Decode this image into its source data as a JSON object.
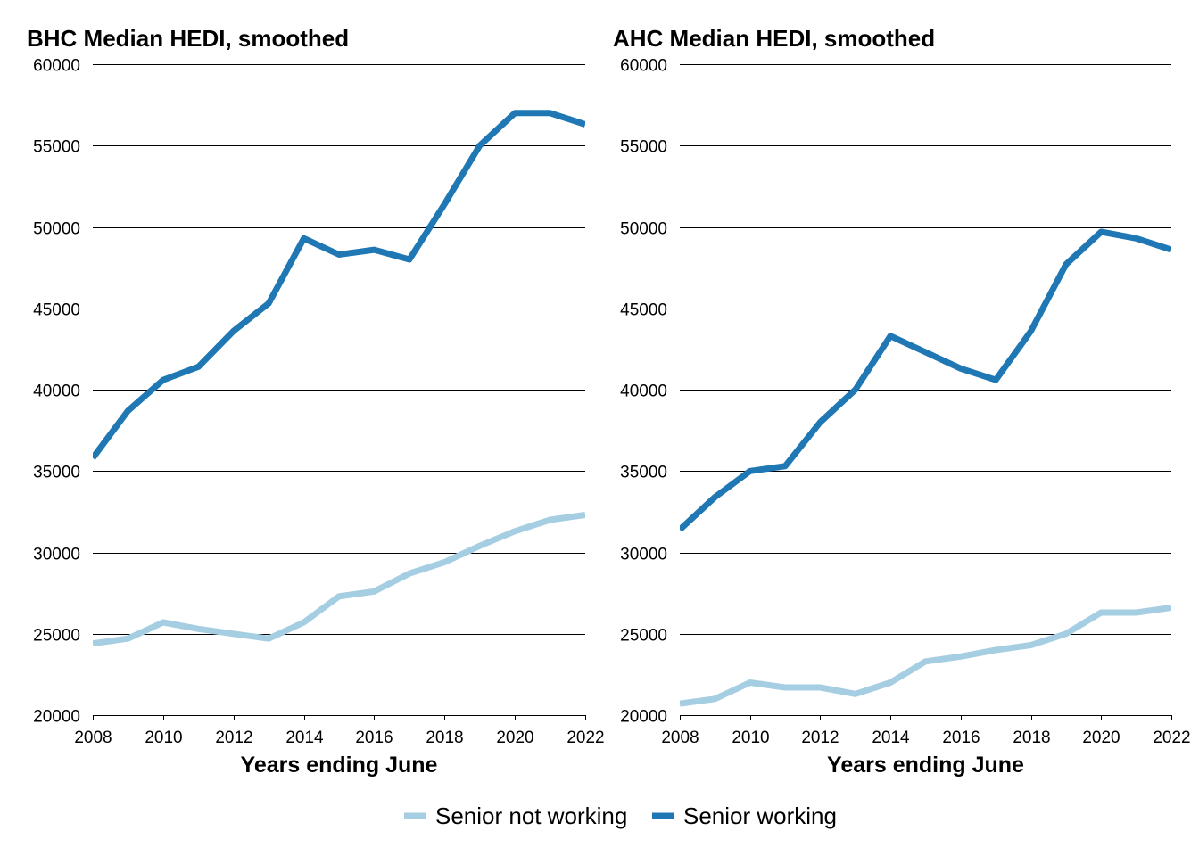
{
  "chart_data": [
    {
      "type": "line",
      "title": "BHC Median HEDI, smoothed",
      "xlabel": "Years ending June",
      "ylabel": "",
      "x": [
        2008,
        2009,
        2010,
        2011,
        2012,
        2013,
        2014,
        2015,
        2016,
        2017,
        2018,
        2019,
        2020,
        2021,
        2022
      ],
      "xlim": [
        2008,
        2022
      ],
      "ylim": [
        20000,
        60000
      ],
      "xticks": [
        2008,
        2010,
        2012,
        2014,
        2016,
        2018,
        2020,
        2022
      ],
      "yticks": [
        20000,
        25000,
        30000,
        35000,
        40000,
        45000,
        50000,
        55000,
        60000
      ],
      "grid": "horizontal",
      "series": [
        {
          "name": "Senior not working",
          "color": "#a6cee3",
          "values": [
            24400,
            24700,
            25700,
            25300,
            25000,
            24700,
            25700,
            27300,
            27600,
            28700,
            29400,
            30400,
            31300,
            32000,
            32300
          ]
        },
        {
          "name": "Senior working",
          "color": "#1f78b4",
          "values": [
            35800,
            38700,
            40600,
            41400,
            43600,
            45300,
            49300,
            48300,
            48600,
            48000,
            51400,
            55000,
            57000,
            57000,
            56300
          ]
        }
      ]
    },
    {
      "type": "line",
      "title": "AHC Median HEDI, smoothed",
      "xlabel": "Years ending June",
      "ylabel": "",
      "x": [
        2008,
        2009,
        2010,
        2011,
        2012,
        2013,
        2014,
        2015,
        2016,
        2017,
        2018,
        2019,
        2020,
        2021,
        2022
      ],
      "xlim": [
        2008,
        2022
      ],
      "ylim": [
        20000,
        60000
      ],
      "xticks": [
        2008,
        2010,
        2012,
        2014,
        2016,
        2018,
        2020,
        2022
      ],
      "yticks": [
        20000,
        25000,
        30000,
        35000,
        40000,
        45000,
        50000,
        55000,
        60000
      ],
      "grid": "horizontal",
      "series": [
        {
          "name": "Senior not working",
          "color": "#a6cee3",
          "values": [
            20700,
            21000,
            22000,
            21700,
            21700,
            21300,
            22000,
            23300,
            23600,
            24000,
            24300,
            25000,
            26300,
            26300,
            26600
          ]
        },
        {
          "name": "Senior working",
          "color": "#1f78b4",
          "values": [
            31400,
            33400,
            35000,
            35300,
            38000,
            40000,
            43300,
            42300,
            41300,
            40600,
            43600,
            47700,
            49700,
            49300,
            48600
          ]
        }
      ]
    }
  ],
  "legend": {
    "placement": "bottom-center",
    "items": [
      {
        "label": "Senior not working",
        "color": "#a6cee3"
      },
      {
        "label": "Senior working",
        "color": "#1f78b4"
      }
    ]
  }
}
